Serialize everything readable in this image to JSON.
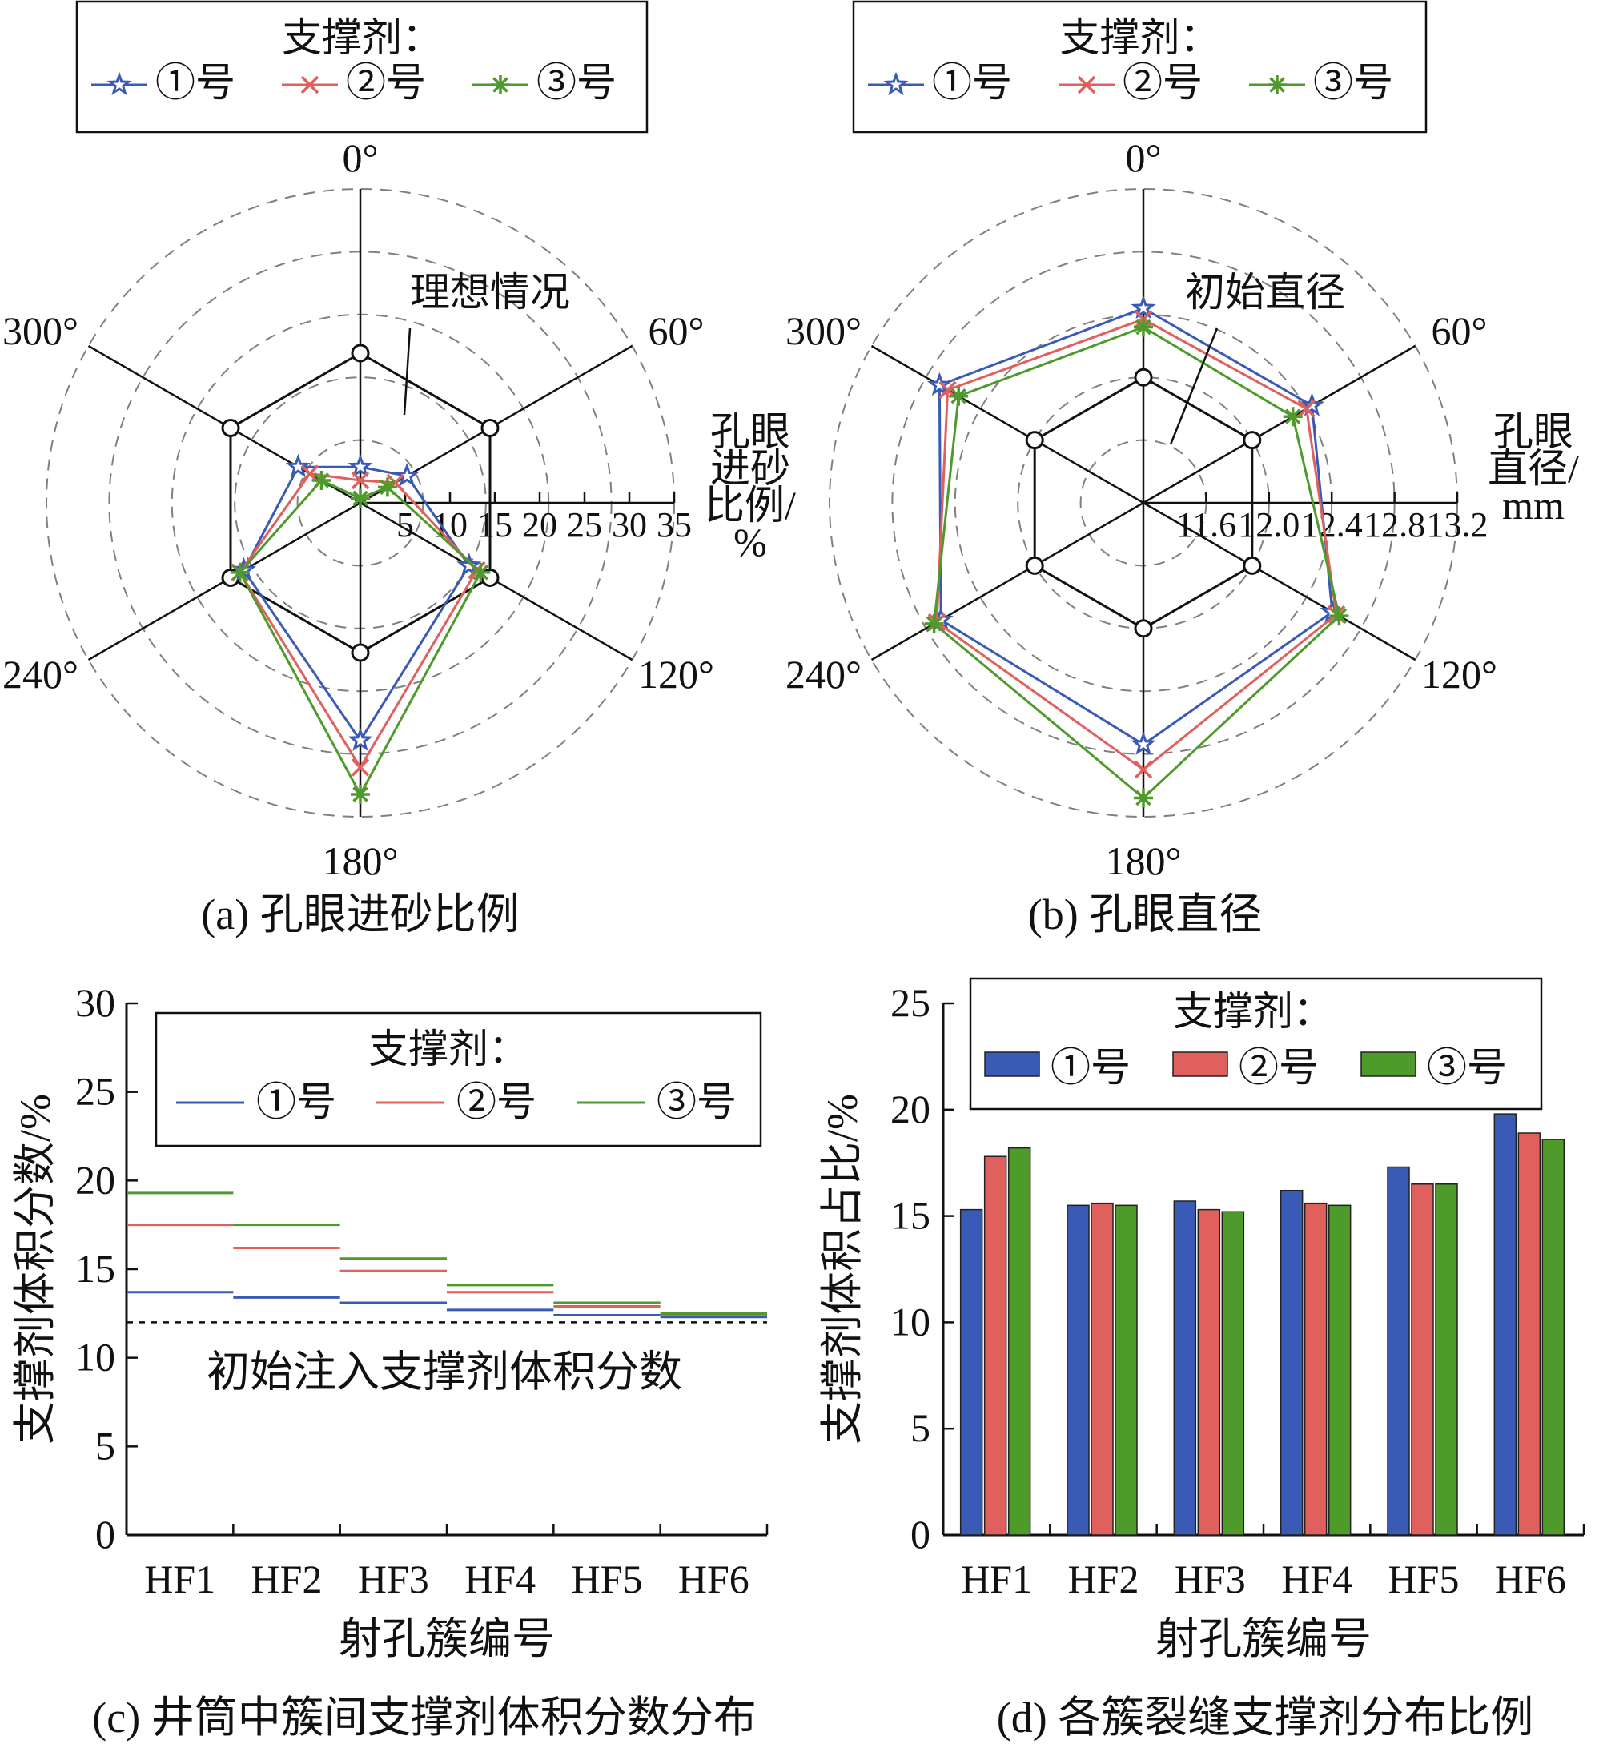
{
  "colors": {
    "s1": "#3a5bb5",
    "s2": "#e0605e",
    "s3": "#4e9a2a",
    "axis": "#111111",
    "grid": "#808080"
  },
  "panels": {
    "a": {
      "caption": "(a) 孔眼进砂比例"
    },
    "b": {
      "caption": "(b) 孔眼直径"
    },
    "c": {
      "caption": "(c) 井筒中簇间支撑剂体积分数分布"
    },
    "d": {
      "caption": "(d) 各簇裂缝支撑剂分布比例"
    }
  },
  "chart_data": [
    {
      "type": "radar",
      "title": "(a) 孔眼进砂比例",
      "angles": [
        "0°",
        "60°",
        "120°",
        "180°",
        "240°",
        "300°"
      ],
      "radial_label": [
        "孔眼",
        "进砂",
        "比例/",
        "%"
      ],
      "radial_ticks": [
        "5",
        "10",
        "15",
        "20",
        "25",
        "30",
        "35"
      ],
      "rlim": [
        0,
        35
      ],
      "legend_title": "支撑剂：",
      "annotation": "理想情况",
      "ideal": [
        16.7,
        16.7,
        16.7,
        16.7,
        16.7,
        16.7
      ],
      "series": [
        {
          "name": "①号",
          "marker": "star",
          "values": [
            4,
            6,
            14,
            26.5,
            15,
            8
          ]
        },
        {
          "name": "②号",
          "marker": "x",
          "values": [
            2.5,
            4.5,
            15,
            29.5,
            15.5,
            6.5
          ]
        },
        {
          "name": "③号",
          "marker": "asterisk",
          "values": [
            0.5,
            3.5,
            15.5,
            32.5,
            15.5,
            5
          ]
        }
      ],
      "grid": true
    },
    {
      "type": "radar",
      "title": "(b) 孔眼直径",
      "angles": [
        "0°",
        "60°",
        "120°",
        "180°",
        "240°",
        "300°"
      ],
      "radial_label": [
        "孔眼",
        "直径/",
        "mm"
      ],
      "radial_ticks": [
        "11.6",
        "12.0",
        "12.4",
        "12.8",
        "13.2"
      ],
      "rlim": [
        11.2,
        13.2
      ],
      "legend_title": "支撑剂：",
      "annotation": "初始直径",
      "ideal": [
        12.0,
        12.0,
        12.0,
        12.0,
        12.0,
        12.0
      ],
      "series": [
        {
          "name": "①号",
          "marker": "star",
          "values": [
            12.44,
            12.44,
            12.59,
            12.74,
            12.69,
            12.7
          ]
        },
        {
          "name": "②号",
          "marker": "x",
          "values": [
            12.37,
            12.4,
            12.62,
            12.9,
            12.72,
            12.64
          ]
        },
        {
          "name": "③号",
          "marker": "asterisk",
          "values": [
            12.32,
            12.3,
            12.64,
            13.08,
            12.74,
            12.56
          ]
        }
      ],
      "grid": true
    },
    {
      "type": "step",
      "title": "(c) 井筒中簇间支撑剂体积分数分布",
      "categories": [
        "HF1",
        "HF2",
        "HF3",
        "HF4",
        "HF5",
        "HF6"
      ],
      "xlabel": "射孔簇编号",
      "ylabel": "支撑剂体积分数/%",
      "ylim": [
        0,
        30
      ],
      "yticks": [
        0,
        5,
        10,
        15,
        20,
        25,
        30
      ],
      "legend_title": "支撑剂：",
      "reference": {
        "value": 12.0,
        "label": "初始注入支撑剂体积分数"
      },
      "series": [
        {
          "name": "①号",
          "values": [
            13.7,
            13.4,
            13.1,
            12.7,
            12.4,
            12.3
          ]
        },
        {
          "name": "②号",
          "values": [
            17.5,
            16.2,
            14.9,
            13.7,
            12.9,
            12.4
          ]
        },
        {
          "name": "③号",
          "values": [
            19.3,
            17.5,
            15.6,
            14.1,
            13.1,
            12.5
          ]
        }
      ]
    },
    {
      "type": "bar",
      "title": "(d) 各簇裂缝支撑剂分布比例",
      "categories": [
        "HF1",
        "HF2",
        "HF3",
        "HF4",
        "HF5",
        "HF6"
      ],
      "xlabel": "射孔簇编号",
      "ylabel": "支撑剂体积占比/%",
      "ylim": [
        0,
        25
      ],
      "yticks": [
        0,
        5,
        10,
        15,
        20,
        25
      ],
      "legend_title": "支撑剂：",
      "series": [
        {
          "name": "①号",
          "values": [
            15.3,
            15.5,
            15.7,
            16.2,
            17.3,
            19.8
          ]
        },
        {
          "name": "②号",
          "values": [
            17.8,
            15.6,
            15.3,
            15.6,
            16.5,
            18.9
          ]
        },
        {
          "name": "③号",
          "values": [
            18.2,
            15.5,
            15.2,
            15.5,
            16.5,
            18.6
          ]
        }
      ]
    }
  ]
}
